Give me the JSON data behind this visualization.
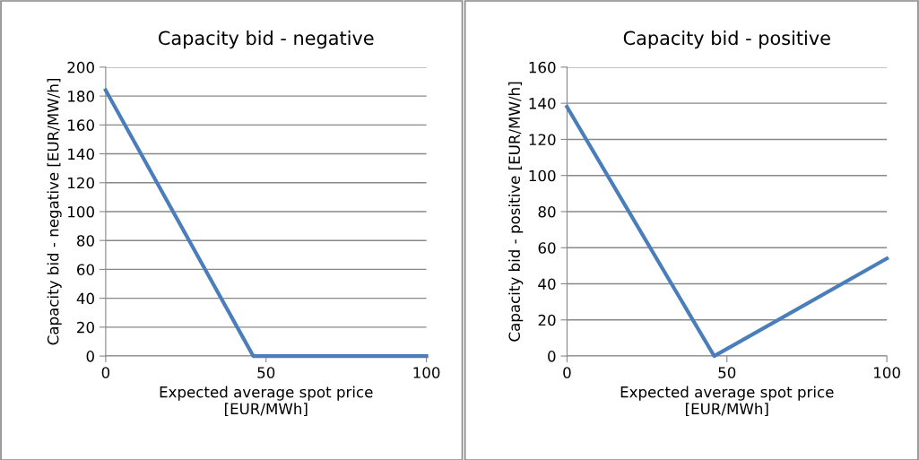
{
  "chart_data": [
    {
      "type": "line",
      "title": "Capacity bid - negative",
      "xlabel": "Expected average spot price\n[EUR/MWh]",
      "ylabel": "Capacity bid - negative [EUR/MW/h]",
      "x": [
        0,
        46,
        100
      ],
      "series": [
        {
          "color": "#4a7ebb",
          "values": [
            184,
            0,
            0
          ]
        }
      ],
      "xlim": [
        0,
        100
      ],
      "xticks": [
        0,
        50,
        100
      ],
      "ylim": [
        0,
        200
      ],
      "yticks": [
        0,
        20,
        40,
        60,
        80,
        100,
        120,
        140,
        160,
        180,
        200
      ],
      "grid": "y",
      "marker": "none",
      "line_style": "solid"
    },
    {
      "type": "line",
      "title": "Capacity bid - positive",
      "xlabel": "Expected average spot price\n[EUR/MWh]",
      "ylabel": "Capacity bid - positive [EUR/MW/h]",
      "x": [
        0,
        46,
        100
      ],
      "series": [
        {
          "color": "#4a7ebb",
          "values": [
            138,
            0,
            54
          ]
        }
      ],
      "xlim": [
        0,
        100
      ],
      "xticks": [
        0,
        50,
        100
      ],
      "ylim": [
        0,
        160
      ],
      "yticks": [
        0,
        20,
        40,
        60,
        80,
        100,
        120,
        140,
        160
      ],
      "grid": "y",
      "marker": "none",
      "line_style": "solid"
    }
  ]
}
